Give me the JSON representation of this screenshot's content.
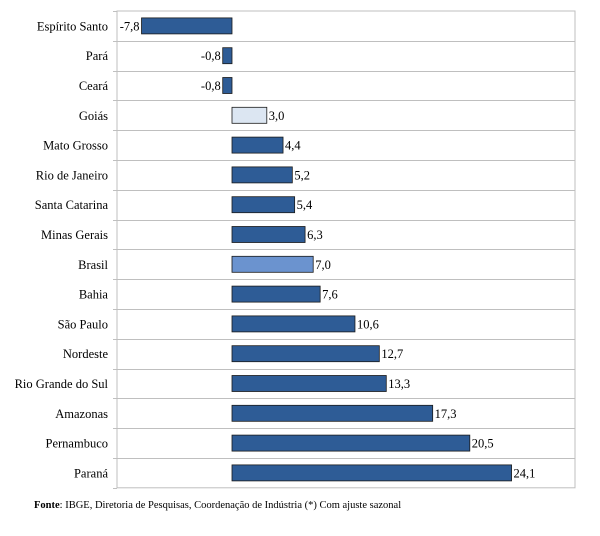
{
  "chart_data": {
    "type": "bar",
    "orientation": "horizontal",
    "categories": [
      "Espírito Santo",
      "Pará",
      "Ceará",
      "Goiás",
      "Mato Grosso",
      "Rio de Janeiro",
      "Santa Catarina",
      "Minas Gerais",
      "Brasil",
      "Bahia",
      "São Paulo",
      "Nordeste",
      "Rio Grande do Sul",
      "Amazonas",
      "Pernambuco",
      "Paraná"
    ],
    "values": [
      -7.8,
      -0.8,
      -0.8,
      3.0,
      4.4,
      5.2,
      5.4,
      6.3,
      7.0,
      7.6,
      10.6,
      12.7,
      13.3,
      17.3,
      20.5,
      24.1
    ],
    "value_labels": [
      "-7,8",
      "-0,8",
      "-0,8",
      "3,0",
      "4,4",
      "5,2",
      "5,4",
      "6,3",
      "7,0",
      "7,6",
      "10,6",
      "12,7",
      "13,3",
      "17,3",
      "20,5",
      "24,1"
    ],
    "bar_colors": [
      "#2e5c96",
      "#2e5c96",
      "#2e5c96",
      "#dce6f2",
      "#2e5c96",
      "#2e5c96",
      "#2e5c96",
      "#2e5c96",
      "#6b93cf",
      "#2e5c96",
      "#2e5c96",
      "#2e5c96",
      "#2e5c96",
      "#2e5c96",
      "#2e5c96",
      "#2e5c96"
    ],
    "xlim": [
      -8,
      30
    ],
    "grid": true,
    "legend": false
  },
  "colors": {
    "bar_default": "#2e5c96",
    "bar_highlight_light": "#dce6f2",
    "bar_highlight_medium": "#6b93cf",
    "bar_stroke": "#1a1a1a",
    "grid": "#bfbfbf"
  },
  "source": {
    "label": "Fonte",
    "text": ": IBGE, Diretoria de Pesquisas, Coordenação de Indústria (*) Com ajuste sazonal"
  }
}
